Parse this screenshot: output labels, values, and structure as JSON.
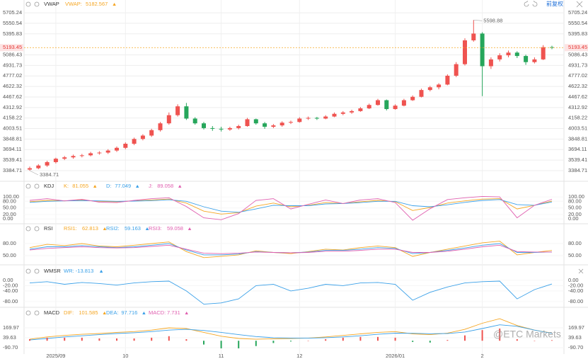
{
  "header": {
    "adjust": "前复权"
  },
  "watermark": "@ETC Markets",
  "chart_data": [
    {
      "type": "candlestick",
      "title": "VWAP",
      "vwap": {
        "name": "VWAP:",
        "value": 5182.567,
        "color": "#f5a623"
      },
      "up_color": "#ef5350",
      "down_color": "#26a65b",
      "price_line_color": "#f5a623",
      "categories": [
        null,
        null,
        null,
        "2025/09",
        null,
        null,
        null,
        null,
        null,
        null,
        null,
        "10",
        null,
        null,
        null,
        null,
        null,
        null,
        null,
        null,
        null,
        null,
        "11",
        null,
        null,
        null,
        null,
        null,
        null,
        null,
        null,
        "12",
        null,
        null,
        null,
        null,
        null,
        null,
        null,
        null,
        null,
        null,
        "2026/01",
        null,
        null,
        null,
        null,
        null,
        null,
        null,
        null,
        null,
        "2",
        null,
        null,
        null,
        null,
        null,
        null,
        null,
        null
      ],
      "candles": [
        [
          3400,
          3445,
          3384.71,
          3420
        ],
        [
          3420,
          3480,
          3405,
          3460
        ],
        [
          3460,
          3530,
          3440,
          3510
        ],
        [
          3510,
          3575,
          3490,
          3560
        ],
        [
          3560,
          3600,
          3540,
          3580
        ],
        [
          3580,
          3620,
          3560,
          3600
        ],
        [
          3600,
          3630,
          3580,
          3610
        ],
        [
          3610,
          3660,
          3595,
          3640
        ],
        [
          3640,
          3670,
          3620,
          3650
        ],
        [
          3650,
          3700,
          3630,
          3680
        ],
        [
          3680,
          3740,
          3660,
          3720
        ],
        [
          3720,
          3800,
          3700,
          3780
        ],
        [
          3780,
          3870,
          3760,
          3850
        ],
        [
          3850,
          3920,
          3830,
          3900
        ],
        [
          3900,
          4000,
          3880,
          3980
        ],
        [
          3980,
          4100,
          3960,
          4080
        ],
        [
          4080,
          4240,
          4060,
          4200
        ],
        [
          4200,
          4360,
          4180,
          4330
        ],
        [
          4330,
          4380,
          4130,
          4150
        ],
        [
          4150,
          4170,
          4060,
          4080
        ],
        [
          4080,
          4100,
          3990,
          4010
        ],
        [
          4010,
          4040,
          3970,
          4000
        ],
        [
          4000,
          4030,
          3960,
          3990
        ],
        [
          3990,
          4030,
          3970,
          4010
        ],
        [
          4010,
          4060,
          3990,
          4040
        ],
        [
          4040,
          4160,
          4030,
          4140
        ],
        [
          4140,
          4150,
          4060,
          4080
        ],
        [
          4080,
          4100,
          4000,
          4030
        ],
        [
          4030,
          4070,
          4010,
          4050
        ],
        [
          4050,
          4110,
          4030,
          4090
        ],
        [
          4090,
          4120,
          4070,
          4100
        ],
        [
          4100,
          4170,
          4090,
          4150
        ],
        [
          4150,
          4180,
          4130,
          4160
        ],
        [
          4160,
          4175,
          4130,
          4150
        ],
        [
          4150,
          4200,
          4140,
          4180
        ],
        [
          4180,
          4240,
          4170,
          4220
        ],
        [
          4220,
          4260,
          4200,
          4240
        ],
        [
          4240,
          4280,
          4220,
          4260
        ],
        [
          4260,
          4320,
          4250,
          4300
        ],
        [
          4300,
          4370,
          4290,
          4350
        ],
        [
          4350,
          4440,
          4340,
          4420
        ],
        [
          4420,
          4430,
          4270,
          4290
        ],
        [
          4290,
          4360,
          4280,
          4340
        ],
        [
          4340,
          4440,
          4330,
          4420
        ],
        [
          4420,
          4490,
          4410,
          4470
        ],
        [
          4470,
          4590,
          4460,
          4570
        ],
        [
          4570,
          4630,
          4550,
          4610
        ],
        [
          4610,
          4670,
          4580,
          4650
        ],
        [
          4650,
          4800,
          4640,
          4780
        ],
        [
          4780,
          4980,
          4760,
          4950
        ],
        [
          4950,
          5330,
          4930,
          5300
        ],
        [
          5300,
          5598.88,
          5280,
          5400
        ],
        [
          5400,
          5420,
          4480,
          4920
        ],
        [
          4920,
          5050,
          4880,
          5020
        ],
        [
          5020,
          5110,
          4990,
          5080
        ],
        [
          5080,
          5150,
          5050,
          5120
        ],
        [
          5120,
          5140,
          5040,
          5070
        ],
        [
          5070,
          5090,
          4940,
          4980
        ],
        [
          4980,
          5050,
          4960,
          5020
        ],
        [
          5020,
          5230,
          5010,
          5200
        ],
        [
          5200,
          5220,
          5170,
          5193.45
        ]
      ],
      "ylim": [
        3270,
        5810
      ],
      "yticks": [
        5705.24,
        5550.54,
        5395.83,
        5086.43,
        4931.73,
        4777.02,
        4622.32,
        4467.62,
        4312.92,
        4158.22,
        4003.51,
        3848.81,
        3694.11,
        3539.41,
        3384.71
      ],
      "grid": true
    },
    {
      "type": "line",
      "title": "KDJ",
      "series": [
        {
          "name": "K:",
          "color": "#f5a623",
          "values": [
            78,
            84,
            82,
            85,
            80,
            78,
            82,
            86,
            90,
            72,
            35,
            22,
            28,
            58,
            72,
            55,
            62,
            74,
            70,
            78,
            84,
            78,
            38,
            52,
            72,
            82,
            90,
            92,
            45,
            62,
            81.055
          ]
        },
        {
          "name": "D:",
          "color": "#3aa0e8",
          "values": [
            75,
            80,
            82,
            83,
            82,
            80,
            81,
            83,
            87,
            80,
            55,
            35,
            30,
            45,
            62,
            60,
            60,
            68,
            70,
            74,
            80,
            80,
            60,
            55,
            64,
            75,
            84,
            88,
            65,
            62,
            77.049
          ]
        },
        {
          "name": "J:",
          "color": "#e060b0",
          "values": [
            84,
            92,
            82,
            89,
            76,
            74,
            84,
            92,
            96,
            56,
            5,
            -4,
            24,
            84,
            92,
            45,
            66,
            86,
            70,
            86,
            92,
            74,
            -6,
            46,
            88,
            96,
            102,
            100,
            5,
            62,
            89.058
          ]
        }
      ],
      "ylim": [
        -19,
        126
      ],
      "yticks": [
        {
          "value": 100,
          "label": "100.00"
        },
        {
          "value": 80,
          "label": "80.00"
        },
        {
          "value": 50,
          "label": "50.00"
        },
        {
          "value": 20,
          "label": "20.00"
        },
        {
          "value": 0,
          "label": "0.00"
        }
      ]
    },
    {
      "type": "line",
      "title": "RSI",
      "series": [
        {
          "name": "RSI1:",
          "color": "#f5a623",
          "values": [
            70,
            78,
            75,
            80,
            74,
            72,
            76,
            80,
            84,
            60,
            45,
            48,
            52,
            62,
            58,
            55,
            60,
            66,
            64,
            70,
            74,
            70,
            48,
            58,
            66,
            74,
            82,
            86,
            52,
            58,
            62.813
          ]
        },
        {
          "name": "RSI2:",
          "color": "#3aa0e8",
          "values": [
            66,
            72,
            72,
            75,
            72,
            70,
            72,
            76,
            80,
            64,
            52,
            52,
            54,
            60,
            58,
            57,
            59,
            63,
            63,
            66,
            70,
            68,
            55,
            58,
            63,
            69,
            76,
            80,
            58,
            58,
            59.163
          ]
        },
        {
          "name": "RSI3:",
          "color": "#e060b0",
          "values": [
            64,
            68,
            70,
            72,
            70,
            69,
            70,
            73,
            76,
            66,
            56,
            55,
            56,
            59,
            58,
            57,
            58,
            61,
            61,
            63,
            66,
            66,
            58,
            58,
            61,
            66,
            72,
            76,
            60,
            59,
            59.058
          ]
        }
      ],
      "ylim": [
        30.6,
        104.7
      ],
      "yticks": [
        {
          "value": 80,
          "label": "80.00"
        },
        {
          "value": 50,
          "label": "50.00"
        }
      ]
    },
    {
      "type": "line",
      "title": "WMSR",
      "series": [
        {
          "name": "WR:",
          "color": "#3aa0e8",
          "values": [
            -10,
            -5,
            -15,
            -8,
            -12,
            -18,
            -10,
            -5,
            -3,
            -40,
            -90,
            -85,
            -70,
            -20,
            -15,
            -40,
            -30,
            -15,
            -20,
            -10,
            -8,
            -15,
            -75,
            -45,
            -25,
            -10,
            -5,
            -3,
            -70,
            -35,
            -13.813
          ]
        }
      ],
      "ylim": [
        -99,
        21
      ],
      "yticks": [
        {
          "value": 0,
          "label": "0.00"
        },
        {
          "value": -20,
          "label": "-20.00"
        },
        {
          "value": -40,
          "label": "-40.00"
        },
        {
          "value": -80,
          "label": "-80.00"
        }
      ]
    },
    {
      "type": "line",
      "title": "MACD",
      "bar_colors": [
        "#ef5350",
        "#26a65b"
      ],
      "series": [
        {
          "name": "DIF:",
          "color": "#f5a623",
          "values": [
            20,
            50,
            70,
            85,
            95,
            110,
            120,
            140,
            170,
            160,
            110,
            60,
            30,
            20,
            25,
            30,
            35,
            50,
            70,
            90,
            110,
            120,
            90,
            80,
            100,
            150,
            230,
            290,
            200,
            140,
            101.585
          ]
        },
        {
          "name": "DEA:",
          "color": "#3aa0e8",
          "values": [
            10,
            30,
            50,
            65,
            80,
            95,
            105,
            120,
            140,
            150,
            135,
            110,
            80,
            55,
            40,
            35,
            34,
            40,
            50,
            65,
            85,
            100,
            98,
            92,
            95,
            115,
            160,
            210,
            190,
            140,
            97.716
          ]
        },
        {
          "name": "MACD:",
          "color": "#e060b0",
          "style": "bar",
          "values": [
            20,
            40,
            40,
            40,
            30,
            30,
            30,
            40,
            60,
            20,
            -50,
            -100,
            -100,
            -70,
            -30,
            -10,
            2,
            20,
            40,
            50,
            50,
            40,
            -16,
            -24,
            10,
            70,
            140,
            160,
            20,
            0,
            7.731
          ]
        }
      ],
      "ylim": [
        -175,
        272
      ],
      "yticks": [
        169.97,
        39.63,
        {
          "value": -90.7,
          "label": "-90.70"
        }
      ]
    }
  ]
}
